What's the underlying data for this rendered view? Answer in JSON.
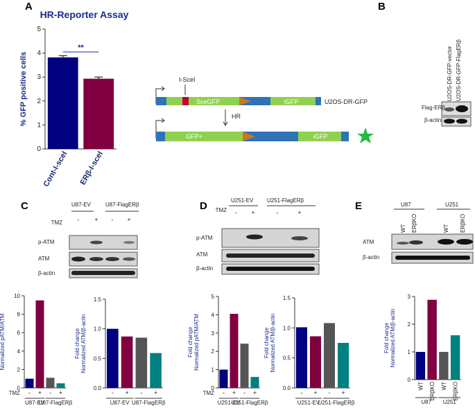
{
  "panel_labels": [
    "A",
    "B",
    "C",
    "D",
    "E"
  ],
  "diagram": {
    "enzyme": "I-SceI",
    "top_segment": "SceGFP",
    "top_end": "iGFP",
    "construct": "U2OS-DR-GFP",
    "step": "HR",
    "bottom_segment": "GFP+",
    "bottom_end": "iGFP"
  },
  "blot_b": {
    "lanes": [
      "U2OS-DR-GFP-vector",
      "U2OS-DR-GFP-FlagERβ"
    ],
    "rows": [
      "Flag-ERβ",
      "β-actin"
    ]
  },
  "blot_c": {
    "groups": [
      "U87-EV",
      "U87-FlagERβ"
    ],
    "treatment": "TMZ",
    "signs": [
      "-",
      "+",
      "-",
      "+"
    ],
    "rows": [
      "p-ATM",
      "ATM",
      "β-actin"
    ]
  },
  "blot_d": {
    "groups": [
      "U251-EV",
      "U251-FlagERβ"
    ],
    "treatment": "TMZ",
    "signs": [
      "-",
      "+",
      "-",
      "+"
    ],
    "rows": [
      "p-ATM",
      "ATM",
      "β-actin"
    ]
  },
  "blot_e": {
    "groups": [
      "U87",
      "U251"
    ],
    "lanes": [
      "WT",
      "ERβKO",
      "WT",
      "ERβKO"
    ],
    "rows": [
      "ATM",
      "β-actin"
    ]
  },
  "chart_data": [
    {
      "type": "bar",
      "title": "HR-Reporter Assay",
      "ylabel": "% GFP positive cells",
      "categories": [
        "Cont-I-sceI",
        "ERβ-I-sceI"
      ],
      "values": [
        3.82,
        2.93
      ],
      "errors": [
        0.07,
        0.07
      ],
      "colors": [
        "#000080",
        "#800040"
      ],
      "ylim": [
        0,
        5
      ],
      "yticks": [
        0,
        1,
        2,
        3,
        4,
        5
      ],
      "significance": "**"
    },
    {
      "type": "bar",
      "ylabel": [
        "Fold change",
        "Normalized pATM/ATM"
      ],
      "categories": [
        "-",
        "+",
        "-",
        "+"
      ],
      "category_label": "TMZ",
      "groups": [
        "U87-EV",
        "U87-FlagERβ"
      ],
      "values": [
        1.0,
        9.5,
        1.1,
        0.5
      ],
      "colors": [
        "#000080",
        "#800040",
        "#555555",
        "#008080"
      ],
      "ylim": [
        0,
        10
      ],
      "yticks": [
        0,
        2,
        4,
        6,
        8,
        10
      ]
    },
    {
      "type": "bar",
      "ylabel": [
        "Fold change",
        "Normalized ATM/β-actin"
      ],
      "categories": [
        "-",
        "+",
        "-",
        "+"
      ],
      "groups": [
        "U87-EV",
        "U87-FlagERβ"
      ],
      "values": [
        1.0,
        0.87,
        0.85,
        0.59
      ],
      "colors": [
        "#000080",
        "#800040",
        "#555555",
        "#008080"
      ],
      "ylim": [
        0,
        1.5
      ],
      "yticks": [
        {
          "value": 0,
          "label": "0.0"
        },
        {
          "value": 0.5,
          "label": "0.5"
        },
        {
          "value": 1,
          "label": "1.0"
        },
        {
          "value": 1.5,
          "label": "1.5"
        }
      ]
    },
    {
      "type": "bar",
      "ylabel": [
        "Fold change",
        "Normalized pATM/ATM"
      ],
      "categories": [
        "-",
        "+",
        "-",
        "+"
      ],
      "category_label": "TMZ",
      "groups": [
        "U251-EV",
        "U251-FlagERβ"
      ],
      "values": [
        1.0,
        4.05,
        2.42,
        0.6
      ],
      "colors": [
        "#000080",
        "#800040",
        "#555555",
        "#008080"
      ],
      "ylim": [
        0,
        5
      ],
      "yticks": [
        0,
        1,
        2,
        3,
        4,
        5
      ]
    },
    {
      "type": "bar",
      "ylabel": [
        "Fold change",
        "Normalized ATM/β-actin"
      ],
      "categories": [
        "-",
        "+",
        "-",
        "+"
      ],
      "groups": [
        "U251-EV",
        "U251-FlagERβ"
      ],
      "values": [
        1.01,
        0.86,
        1.08,
        0.75
      ],
      "colors": [
        "#000080",
        "#800040",
        "#555555",
        "#008080"
      ],
      "ylim": [
        0,
        1.5
      ],
      "yticks": [
        {
          "value": 0,
          "label": "0.0"
        },
        {
          "value": 0.5,
          "label": "0.5"
        },
        {
          "value": 1,
          "label": "1.0"
        },
        {
          "value": 1.5,
          "label": "1.5"
        }
      ]
    },
    {
      "type": "bar",
      "ylabel": [
        "Fold change",
        "Normalized ATM/β-actin"
      ],
      "categories": [
        "WT",
        "ERβKO",
        "WT",
        "ERβKO"
      ],
      "groups": [
        "U87",
        "U251"
      ],
      "values": [
        1.0,
        2.88,
        1.0,
        1.6
      ],
      "colors": [
        "#000080",
        "#800040",
        "#555555",
        "#008080"
      ],
      "ylim": [
        0,
        3
      ],
      "yticks": [
        0,
        1,
        2,
        3
      ]
    }
  ]
}
